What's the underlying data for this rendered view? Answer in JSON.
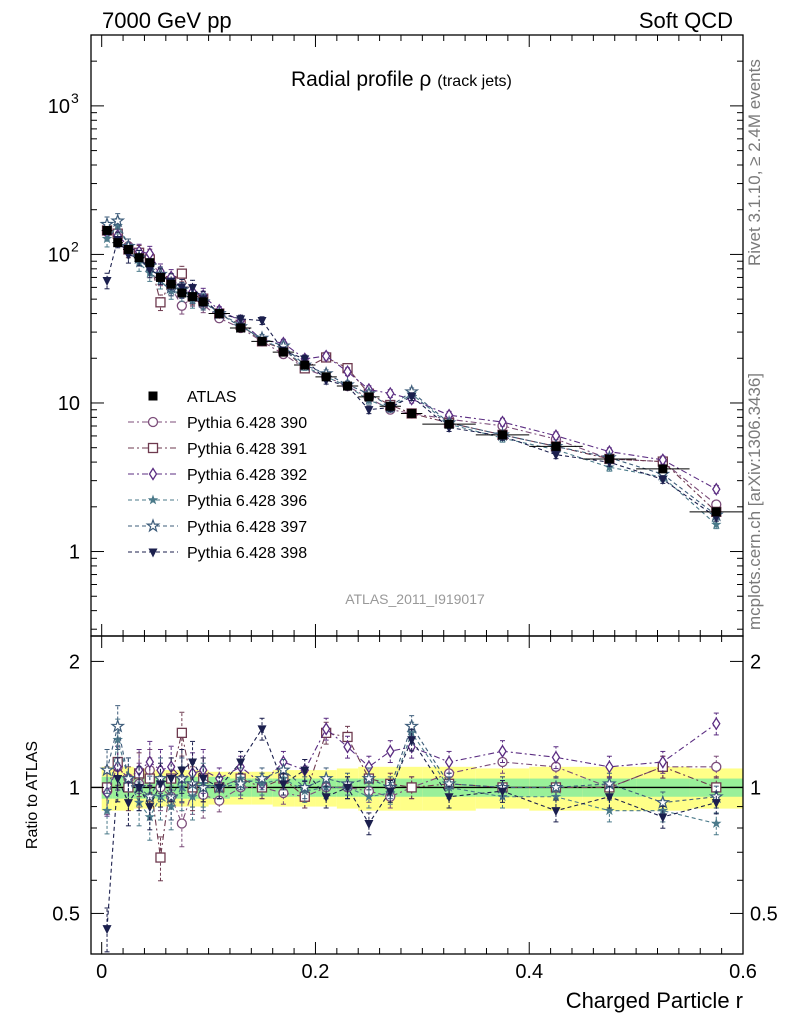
{
  "header": {
    "left": "7000 GeV pp",
    "right": "Soft QCD"
  },
  "side_labels": {
    "rivet": "Rivet 3.1.10, ≥ 2.4M events",
    "mcplots": "mcplots.cern.ch [arXiv:1306.3436]"
  },
  "chart_data": {
    "type": "scatter",
    "title": "Radial profile",
    "title_symbol": "ρ",
    "title_suffix": "(track jets)",
    "watermark": "ATLAS_2011_I919017",
    "xlabel": "Charged Particle r",
    "ylabel": "",
    "ratio_ylabel": "Ratio to ATLAS",
    "xlim": [
      -0.01,
      0.6
    ],
    "ylim": [
      0.27,
      3000
    ],
    "ratio_ylim": [
      0.4,
      2.3
    ],
    "log_y": true,
    "legend_position": "left",
    "x_ticks": [
      {
        "v": 0,
        "label": "0"
      },
      {
        "v": 0.2,
        "label": "0.2"
      },
      {
        "v": 0.4,
        "label": "0.4"
      },
      {
        "v": 0.6,
        "label": "0.6"
      }
    ],
    "y_ticks": [
      {
        "v": 1,
        "label": "1"
      },
      {
        "v": 10,
        "label": "10"
      },
      {
        "v": 100,
        "label": "10",
        "sup": "2"
      },
      {
        "v": 1000,
        "label": "10",
        "sup": "3"
      }
    ],
    "ratio_ticks": [
      {
        "v": 0.5,
        "label": "0.5"
      },
      {
        "v": 1,
        "label": "1"
      },
      {
        "v": 2,
        "label": "2"
      }
    ],
    "x": [
      0.005,
      0.015,
      0.025,
      0.035,
      0.045,
      0.055,
      0.065,
      0.075,
      0.085,
      0.095,
      0.11,
      0.13,
      0.15,
      0.17,
      0.19,
      0.21,
      0.23,
      0.25,
      0.27,
      0.29,
      0.325,
      0.375,
      0.425,
      0.475,
      0.525,
      0.575
    ],
    "x_half_width": [
      0.005,
      0.005,
      0.005,
      0.005,
      0.005,
      0.005,
      0.005,
      0.005,
      0.005,
      0.005,
      0.01,
      0.01,
      0.01,
      0.01,
      0.01,
      0.01,
      0.01,
      0.01,
      0.01,
      0.01,
      0.025,
      0.025,
      0.025,
      0.025,
      0.025,
      0.025
    ],
    "data": {
      "name": "ATLAS",
      "color": "#000000",
      "y": [
        145,
        120,
        108,
        95,
        88,
        70,
        63,
        55,
        52,
        48,
        40,
        32,
        26,
        22,
        18,
        15,
        13,
        11,
        9.5,
        8.5,
        7.2,
        6.1,
        5.1,
        4.2,
        3.6,
        1.85
      ],
      "band_inner": [
        0.06,
        0.06,
        0.06,
        0.06,
        0.06,
        0.06,
        0.06,
        0.06,
        0.06,
        0.06,
        0.06,
        0.05,
        0.05,
        0.05,
        0.05,
        0.05,
        0.05,
        0.05,
        0.05,
        0.05,
        0.05,
        0.05,
        0.05,
        0.05,
        0.05,
        0.05
      ],
      "band_outer": [
        0.12,
        0.12,
        0.12,
        0.11,
        0.11,
        0.1,
        0.1,
        0.1,
        0.1,
        0.1,
        0.09,
        0.09,
        0.09,
        0.1,
        0.1,
        0.1,
        0.11,
        0.12,
        0.12,
        0.12,
        0.12,
        0.11,
        0.12,
        0.12,
        0.12,
        0.11
      ]
    },
    "series": [
      {
        "name": "Pythia 6.428 390",
        "color": "#7c4d7a",
        "marker": "circle-open",
        "dash": "6,3,2,3",
        "ratio": [
          0.98,
          1.12,
          1.05,
          1.02,
          1.1,
          1.0,
          0.95,
          0.82,
          0.98,
          0.96,
          0.93,
          1.0,
          1.0,
          0.97,
          0.95,
          1.0,
          1.0,
          0.98,
          0.95,
          1.0,
          1.08,
          1.15,
          1.12,
          1.0,
          1.12,
          1.12
        ]
      },
      {
        "name": "Pythia 6.428 391",
        "color": "#6e3a4f",
        "marker": "square-open",
        "dash": "6,3,2,3",
        "ratio": [
          1.0,
          1.15,
          1.0,
          1.08,
          1.05,
          0.68,
          1.05,
          1.35,
          1.0,
          1.05,
          1.0,
          1.05,
          1.0,
          1.05,
          0.95,
          1.35,
          1.32,
          1.05,
          1.02,
          1.0,
          1.02,
          1.0,
          1.0,
          1.0,
          1.12,
          1.0
        ]
      },
      {
        "name": "Pythia 6.428 392",
        "color": "#5b2d82",
        "marker": "diamond-open",
        "dash": "6,3,2,3",
        "ratio": [
          0.97,
          1.12,
          1.05,
          1.1,
          1.15,
          1.1,
          1.12,
          1.05,
          1.08,
          1.1,
          1.05,
          1.12,
          1.02,
          1.15,
          1.1,
          1.38,
          1.25,
          1.12,
          1.22,
          1.25,
          1.15,
          1.22,
          1.18,
          1.12,
          1.15,
          1.42
        ]
      },
      {
        "name": "Pythia 6.428 396",
        "color": "#4b7a8a",
        "marker": "star-filled",
        "dash": "4,3",
        "ratio": [
          0.88,
          1.3,
          1.05,
          0.92,
          0.85,
          0.95,
          0.9,
          1.0,
          0.95,
          1.02,
          1.0,
          1.05,
          1.02,
          1.05,
          0.98,
          1.0,
          1.0,
          0.95,
          0.97,
          1.35,
          1.0,
          0.95,
          0.95,
          0.88,
          0.88,
          0.82
        ]
      },
      {
        "name": "Pythia 6.428 397",
        "color": "#3d5c7a",
        "marker": "star-open",
        "dash": "4,3",
        "ratio": [
          1.1,
          1.4,
          1.05,
          1.0,
          0.95,
          1.05,
          0.95,
          1.05,
          1.02,
          1.0,
          1.0,
          1.02,
          1.05,
          1.1,
          1.0,
          1.05,
          1.02,
          1.05,
          1.0,
          1.4,
          1.02,
          1.0,
          1.0,
          1.02,
          0.92,
          0.95
        ]
      },
      {
        "name": "Pythia 6.428 398",
        "color": "#1b1f4d",
        "marker": "triangle-down",
        "dash": "4,3",
        "ratio": [
          0.46,
          1.05,
          0.92,
          1.0,
          0.9,
          1.02,
          1.05,
          1.1,
          1.15,
          1.05,
          1.0,
          1.15,
          1.38,
          1.02,
          1.1,
          0.95,
          1.0,
          0.82,
          0.98,
          1.3,
          0.95,
          0.98,
          0.88,
          0.95,
          0.85,
          0.92
        ]
      }
    ]
  }
}
